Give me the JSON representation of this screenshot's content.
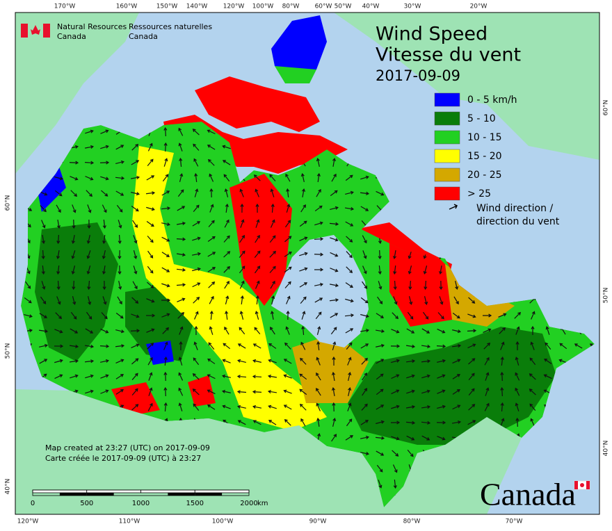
{
  "agency": {
    "en_line1": "Natural Resources",
    "en_line2": "Canada",
    "fr_line1": "Ressources naturelles",
    "fr_line2": "Canada"
  },
  "title": {
    "en": "Wind Speed",
    "fr": "Vitesse du vent",
    "date": "2017-09-09"
  },
  "legend": {
    "items": [
      {
        "label": "0 - 5 km/h",
        "color": "#0000ff"
      },
      {
        "label": "5 - 10",
        "color": "#0a7d0a"
      },
      {
        "label": "10 - 15",
        "color": "#22d022"
      },
      {
        "label": "15 - 20",
        "color": "#ffff00"
      },
      {
        "label": "20 - 25",
        "color": "#d4a800"
      },
      {
        "label": "> 25",
        "color": "#ff0000"
      }
    ],
    "wind_direction": [
      "Wind direction /",
      "direction du vent"
    ]
  },
  "credits": [
    "Map created at 23:27 (UTC) on 2017-09-09",
    "Carte créée le 2017-09-09 (UTC) à 23:27"
  ],
  "graticule": {
    "top": [
      "170°W",
      "160°W",
      "150°W",
      "140°W",
      "120°W",
      "100°W",
      "80°W",
      "60°W",
      "50°W",
      "40°W",
      "30°W",
      "20°W"
    ],
    "bottom": [
      "120°W",
      "110°W",
      "100°W",
      "90°W",
      "80°W",
      "70°W"
    ],
    "left": [
      "60°N",
      "50°N",
      "40°N"
    ],
    "right": [
      "60°N",
      "50°N",
      "40°N"
    ]
  },
  "scale": {
    "ticks": [
      "0",
      "500",
      "1000",
      "1500",
      "2000"
    ],
    "unit": "km"
  },
  "wordmark": "Canada"
}
